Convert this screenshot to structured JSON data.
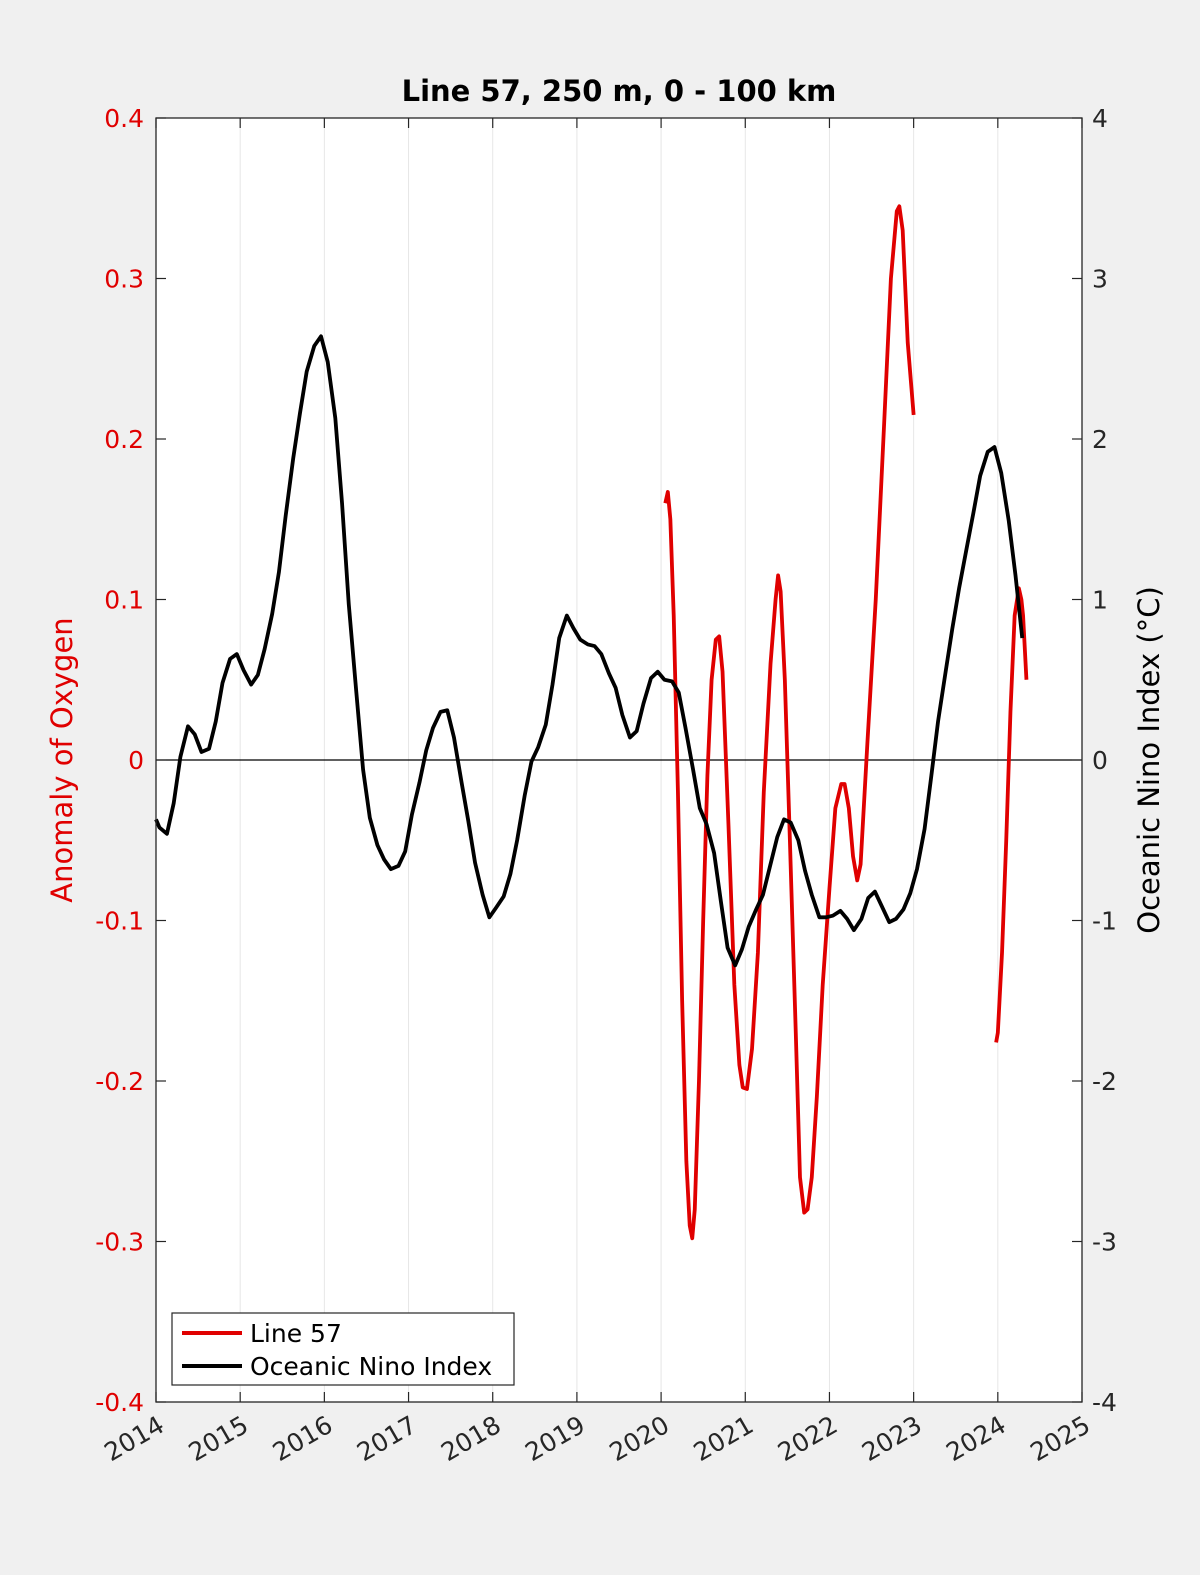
{
  "chart_data": {
    "type": "line",
    "title": "Line 57, 250 m, 0 - 100 km",
    "xlabel": "",
    "ylabel_left": "Anomaly of Oxygen",
    "ylabel_right": "Oceanic Nino Index (°C)",
    "xlim": [
      2014,
      2025
    ],
    "ylim_left": [
      -0.4,
      0.4
    ],
    "ylim_right": [
      -4,
      4
    ],
    "x_ticks": [
      "2014",
      "2015",
      "2016",
      "2017",
      "2018",
      "2019",
      "2020",
      "2021",
      "2022",
      "2023",
      "2024",
      "2025"
    ],
    "y_ticks_left": [
      "-0.4",
      "-0.3",
      "-0.2",
      "-0.1",
      "0",
      "0.1",
      "0.2",
      "0.3",
      "0.4"
    ],
    "y_ticks_right": [
      "-4",
      "-3",
      "-2",
      "-1",
      "0",
      "1",
      "2",
      "3",
      "4"
    ],
    "grid": "vertical",
    "legend_position": "bottom-left",
    "series": [
      {
        "name": "Line 57",
        "axis": "left",
        "color": "#e00000",
        "segments": [
          [
            [
              2020.05,
              0.16
            ],
            [
              2020.08,
              0.167
            ],
            [
              2020.11,
              0.15
            ],
            [
              2020.15,
              0.09
            ],
            [
              2020.2,
              -0.02
            ],
            [
              2020.25,
              -0.15
            ],
            [
              2020.3,
              -0.25
            ],
            [
              2020.34,
              -0.29
            ],
            [
              2020.37,
              -0.298
            ],
            [
              2020.4,
              -0.28
            ],
            [
              2020.45,
              -0.2
            ],
            [
              2020.5,
              -0.1
            ],
            [
              2020.55,
              -0.01
            ],
            [
              2020.6,
              0.05
            ],
            [
              2020.65,
              0.075
            ],
            [
              2020.69,
              0.077
            ],
            [
              2020.73,
              0.055
            ],
            [
              2020.8,
              -0.04
            ],
            [
              2020.87,
              -0.14
            ],
            [
              2020.93,
              -0.19
            ],
            [
              2020.97,
              -0.204
            ],
            [
              2021.02,
              -0.205
            ],
            [
              2021.08,
              -0.18
            ],
            [
              2021.15,
              -0.12
            ],
            [
              2021.22,
              -0.02
            ],
            [
              2021.3,
              0.06
            ],
            [
              2021.36,
              0.1
            ],
            [
              2021.39,
              0.115
            ],
            [
              2021.42,
              0.105
            ],
            [
              2021.47,
              0.05
            ],
            [
              2021.53,
              -0.05
            ],
            [
              2021.6,
              -0.17
            ],
            [
              2021.65,
              -0.26
            ],
            [
              2021.7,
              -0.282
            ],
            [
              2021.74,
              -0.28
            ],
            [
              2021.79,
              -0.26
            ],
            [
              2021.85,
              -0.21
            ],
            [
              2021.92,
              -0.14
            ],
            [
              2022.0,
              -0.08
            ],
            [
              2022.07,
              -0.03
            ],
            [
              2022.14,
              -0.015
            ],
            [
              2022.18,
              -0.015
            ],
            [
              2022.23,
              -0.03
            ],
            [
              2022.28,
              -0.06
            ],
            [
              2022.33,
              -0.075
            ],
            [
              2022.37,
              -0.065
            ],
            [
              2022.45,
              0.01
            ],
            [
              2022.55,
              0.1
            ],
            [
              2022.65,
              0.21
            ],
            [
              2022.73,
              0.3
            ],
            [
              2022.8,
              0.342
            ],
            [
              2022.83,
              0.345
            ],
            [
              2022.87,
              0.33
            ],
            [
              2022.93,
              0.26
            ],
            [
              2023.0,
              0.215
            ]
          ],
          [
            [
              2023.98,
              -0.176
            ],
            [
              2024.0,
              -0.17
            ],
            [
              2024.05,
              -0.12
            ],
            [
              2024.1,
              -0.05
            ],
            [
              2024.15,
              0.03
            ],
            [
              2024.2,
              0.09
            ],
            [
              2024.25,
              0.107
            ],
            [
              2024.28,
              0.1
            ],
            [
              2024.3,
              0.09
            ],
            [
              2024.34,
              0.05
            ]
          ]
        ]
      },
      {
        "name": "Oceanic Nino Index",
        "axis": "right",
        "color": "#000000",
        "segments": [
          [
            [
              2014.0,
              -0.37
            ],
            [
              2014.04,
              -0.42
            ],
            [
              2014.13,
              -0.46
            ],
            [
              2014.21,
              -0.27
            ],
            [
              2014.29,
              0.02
            ],
            [
              2014.38,
              0.21
            ],
            [
              2014.46,
              0.16
            ],
            [
              2014.54,
              0.05
            ],
            [
              2014.63,
              0.07
            ],
            [
              2014.71,
              0.24
            ],
            [
              2014.79,
              0.48
            ],
            [
              2014.88,
              0.63
            ],
            [
              2014.96,
              0.66
            ],
            [
              2015.04,
              0.56
            ],
            [
              2015.13,
              0.47
            ],
            [
              2015.21,
              0.53
            ],
            [
              2015.29,
              0.69
            ],
            [
              2015.38,
              0.91
            ],
            [
              2015.46,
              1.17
            ],
            [
              2015.54,
              1.52
            ],
            [
              2015.63,
              1.88
            ],
            [
              2015.71,
              2.16
            ],
            [
              2015.79,
              2.42
            ],
            [
              2015.88,
              2.58
            ],
            [
              2015.96,
              2.64
            ],
            [
              2016.04,
              2.48
            ],
            [
              2016.13,
              2.13
            ],
            [
              2016.21,
              1.6
            ],
            [
              2016.29,
              0.97
            ],
            [
              2016.38,
              0.42
            ],
            [
              2016.46,
              -0.06
            ],
            [
              2016.54,
              -0.36
            ],
            [
              2016.63,
              -0.53
            ],
            [
              2016.71,
              -0.62
            ],
            [
              2016.79,
              -0.68
            ],
            [
              2016.88,
              -0.66
            ],
            [
              2016.96,
              -0.57
            ],
            [
              2017.04,
              -0.34
            ],
            [
              2017.13,
              -0.14
            ],
            [
              2017.21,
              0.06
            ],
            [
              2017.29,
              0.2
            ],
            [
              2017.38,
              0.3
            ],
            [
              2017.46,
              0.31
            ],
            [
              2017.54,
              0.14
            ],
            [
              2017.63,
              -0.14
            ],
            [
              2017.71,
              -0.38
            ],
            [
              2017.79,
              -0.64
            ],
            [
              2017.88,
              -0.84
            ],
            [
              2017.96,
              -0.98
            ],
            [
              2018.04,
              -0.92
            ],
            [
              2018.13,
              -0.85
            ],
            [
              2018.21,
              -0.71
            ],
            [
              2018.29,
              -0.5
            ],
            [
              2018.38,
              -0.22
            ],
            [
              2018.46,
              -0.01
            ],
            [
              2018.54,
              0.08
            ],
            [
              2018.63,
              0.22
            ],
            [
              2018.71,
              0.47
            ],
            [
              2018.79,
              0.76
            ],
            [
              2018.88,
              0.9
            ],
            [
              2018.96,
              0.82
            ],
            [
              2019.04,
              0.75
            ],
            [
              2019.13,
              0.72
            ],
            [
              2019.21,
              0.71
            ],
            [
              2019.29,
              0.66
            ],
            [
              2019.38,
              0.54
            ],
            [
              2019.46,
              0.45
            ],
            [
              2019.54,
              0.28
            ],
            [
              2019.63,
              0.14
            ],
            [
              2019.71,
              0.18
            ],
            [
              2019.79,
              0.35
            ],
            [
              2019.88,
              0.51
            ],
            [
              2019.96,
              0.55
            ],
            [
              2020.04,
              0.5
            ],
            [
              2020.13,
              0.49
            ],
            [
              2020.21,
              0.42
            ],
            [
              2020.29,
              0.2
            ],
            [
              2020.38,
              -0.06
            ],
            [
              2020.46,
              -0.3
            ],
            [
              2020.54,
              -0.4
            ],
            [
              2020.63,
              -0.58
            ],
            [
              2020.71,
              -0.88
            ],
            [
              2020.79,
              -1.17
            ],
            [
              2020.88,
              -1.28
            ],
            [
              2020.96,
              -1.18
            ],
            [
              2021.04,
              -1.04
            ],
            [
              2021.13,
              -0.93
            ],
            [
              2021.21,
              -0.84
            ],
            [
              2021.29,
              -0.67
            ],
            [
              2021.38,
              -0.48
            ],
            [
              2021.46,
              -0.37
            ],
            [
              2021.54,
              -0.39
            ],
            [
              2021.63,
              -0.5
            ],
            [
              2021.71,
              -0.69
            ],
            [
              2021.79,
              -0.84
            ],
            [
              2021.88,
              -0.98
            ],
            [
              2021.96,
              -0.98
            ],
            [
              2022.04,
              -0.97
            ],
            [
              2022.13,
              -0.94
            ],
            [
              2022.21,
              -0.99
            ],
            [
              2022.29,
              -1.06
            ],
            [
              2022.38,
              -0.99
            ],
            [
              2022.46,
              -0.86
            ],
            [
              2022.54,
              -0.82
            ],
            [
              2022.63,
              -0.92
            ],
            [
              2022.71,
              -1.01
            ],
            [
              2022.79,
              -0.99
            ],
            [
              2022.88,
              -0.93
            ],
            [
              2022.96,
              -0.83
            ],
            [
              2023.04,
              -0.68
            ],
            [
              2023.13,
              -0.43
            ],
            [
              2023.21,
              -0.1
            ],
            [
              2023.29,
              0.24
            ],
            [
              2023.38,
              0.55
            ],
            [
              2023.46,
              0.82
            ],
            [
              2023.54,
              1.07
            ],
            [
              2023.63,
              1.32
            ],
            [
              2023.71,
              1.54
            ],
            [
              2023.79,
              1.77
            ],
            [
              2023.88,
              1.92
            ],
            [
              2023.96,
              1.95
            ],
            [
              2024.04,
              1.79
            ],
            [
              2024.13,
              1.49
            ],
            [
              2024.21,
              1.15
            ],
            [
              2024.29,
              0.76
            ]
          ]
        ]
      }
    ]
  }
}
